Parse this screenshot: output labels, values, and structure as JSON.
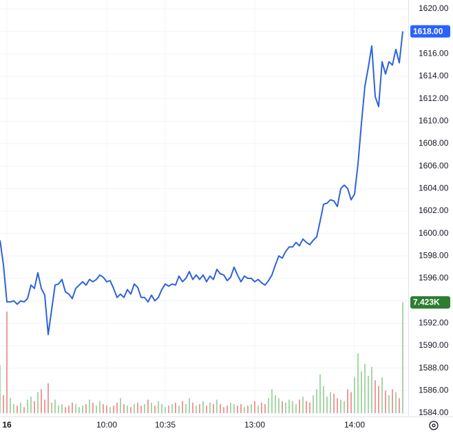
{
  "chart_data": {
    "type": "line",
    "x": [
      0,
      1,
      2,
      3,
      4,
      5,
      6,
      7,
      8,
      9,
      10,
      11,
      12,
      13,
      14,
      15,
      16,
      17,
      18,
      19,
      20,
      21,
      22,
      23,
      24,
      25,
      26,
      27,
      28,
      29,
      30,
      31,
      32,
      33,
      34,
      35,
      36,
      37,
      38,
      39,
      40,
      41,
      42,
      43,
      44,
      45,
      46,
      47,
      48,
      49,
      50,
      51,
      52,
      53,
      54,
      55,
      56,
      57,
      58,
      59,
      60,
      61,
      62,
      63,
      64,
      65,
      66,
      67,
      68,
      69,
      70,
      71,
      72,
      73,
      74,
      75,
      76,
      77,
      78,
      79,
      80,
      81,
      82,
      83,
      84,
      85,
      86,
      87,
      88,
      89,
      90,
      91,
      92,
      93,
      94,
      95,
      96,
      97,
      98,
      99,
      100,
      101,
      102,
      103,
      104,
      105,
      106,
      107,
      108,
      109,
      110,
      111,
      112,
      113,
      114,
      115,
      116,
      117
    ],
    "xlim": [
      0,
      117
    ],
    "xticks": [
      {
        "value": 2,
        "label": "16"
      },
      {
        "value": 31,
        "label": "10:00"
      },
      {
        "value": 48,
        "label": "10:35"
      },
      {
        "value": 74,
        "label": "13:00"
      },
      {
        "value": 103,
        "label": "14:00"
      }
    ],
    "ylim": [
      1584,
      1620
    ],
    "yticks": [
      {
        "value": 1584,
        "label": "1584.00"
      },
      {
        "value": 1586,
        "label": "1586.00"
      },
      {
        "value": 1588,
        "label": "1588.00"
      },
      {
        "value": 1590,
        "label": "1590.00"
      },
      {
        "value": 1592,
        "label": "1592.00"
      },
      {
        "value": 1594,
        "label": "1594.00"
      },
      {
        "value": 1596,
        "label": "1596.00"
      },
      {
        "value": 1598,
        "label": "1598.00"
      },
      {
        "value": 1600,
        "label": "1600.00"
      },
      {
        "value": 1602,
        "label": "1602.00"
      },
      {
        "value": 1604,
        "label": "1604.00"
      },
      {
        "value": 1606,
        "label": "1606.00"
      },
      {
        "value": 1608,
        "label": "1608.00"
      },
      {
        "value": 1610,
        "label": "1610.00"
      },
      {
        "value": 1612,
        "label": "1612.00"
      },
      {
        "value": 1614,
        "label": "1614.00"
      },
      {
        "value": 1616,
        "label": "1616.00"
      },
      {
        "value": 1618,
        "label": "1618.00"
      },
      {
        "value": 1620,
        "label": "1620.00"
      }
    ],
    "y2lim": [
      0,
      27.1
    ],
    "grid": true,
    "up_color": "#a5d6a7",
    "down_color": "#ef9a9a",
    "series": [
      {
        "color": "#2d62d9",
        "label_color": "#2962ff",
        "values": [
          1599.4,
          1597.2,
          1593.9,
          1593.9,
          1594.0,
          1593.7,
          1594.0,
          1593.9,
          1594.2,
          1595.4,
          1595.1,
          1596.5,
          1595.1,
          1594.5,
          1591.0,
          1593.2,
          1595.4,
          1595.5,
          1595.9,
          1594.8,
          1594.6,
          1594.2,
          1595.1,
          1595.4,
          1595.7,
          1595.4,
          1595.9,
          1595.7,
          1595.9,
          1596.3,
          1596.1,
          1595.7,
          1595.8,
          1595.1,
          1594.3,
          1594.6,
          1594.3,
          1595.0,
          1594.6,
          1595.5,
          1595.2,
          1594.3,
          1594.3,
          1593.9,
          1594.5,
          1594.0,
          1594.3,
          1595.0,
          1595.5,
          1595.3,
          1595.5,
          1595.4,
          1596.2,
          1595.7,
          1596.0,
          1596.6,
          1595.9,
          1596.3,
          1595.9,
          1596.3,
          1595.7,
          1596.2,
          1595.9,
          1596.8,
          1596.4,
          1596.3,
          1595.8,
          1596.1,
          1597.0,
          1596.3,
          1595.7,
          1596.2,
          1596.0,
          1596.0,
          1595.7,
          1595.9,
          1595.6,
          1595.4,
          1595.8,
          1596.3,
          1597.2,
          1598.0,
          1597.8,
          1598.4,
          1598.8,
          1598.8,
          1599.2,
          1598.9,
          1599.5,
          1599.2,
          1599.0,
          1599.4,
          1599.7,
          1601.1,
          1602.6,
          1602.7,
          1603.0,
          1602.9,
          1602.4,
          1604.0,
          1604.3,
          1604.0,
          1603.0,
          1603.5,
          1606.2,
          1609.8,
          1613.1,
          1614.8,
          1616.7,
          1612.2,
          1611.3,
          1615.3,
          1614.2,
          1615.3,
          1615.0,
          1616.4,
          1615.2,
          1618.0
        ],
        "value_labels": [
          null,
          null,
          null,
          null,
          null,
          null,
          null,
          null,
          null,
          null,
          null,
          null,
          null,
          null,
          null,
          null,
          null,
          null,
          null,
          null,
          null,
          null,
          null,
          null,
          null,
          null,
          null,
          null,
          null,
          null,
          null,
          null,
          null,
          null,
          null,
          null,
          null,
          null,
          null,
          null,
          null,
          null,
          null,
          null,
          null,
          null,
          null,
          null,
          null,
          null,
          null,
          null,
          null,
          null,
          null,
          null,
          null,
          null,
          null,
          null,
          null,
          null,
          null,
          null,
          null,
          null,
          null,
          null,
          null,
          null,
          null,
          null,
          null,
          null,
          null,
          null,
          null,
          null,
          null,
          null,
          null,
          null,
          null,
          null,
          null,
          null,
          null,
          null,
          null,
          null,
          null,
          null,
          null,
          null,
          null,
          null,
          null,
          null,
          null,
          null,
          null,
          null,
          null,
          null,
          null,
          null,
          null,
          null,
          null,
          null,
          null,
          null,
          null,
          null,
          null,
          null,
          null,
          "1618.00"
        ]
      },
      {
        "axis": "y2",
        "color": "#26a69a",
        "label_color": "#2e7d32",
        "values": [
          3.2,
          1.2,
          6.8,
          1.0,
          0.6,
          0.5,
          0.7,
          0.4,
          0.9,
          1.1,
          0.8,
          1.4,
          1.6,
          0.9,
          2.0,
          0.7,
          0.9,
          0.5,
          0.6,
          0.4,
          0.5,
          0.7,
          0.6,
          0.4,
          0.5,
          0.6,
          0.9,
          0.7,
          0.5,
          0.8,
          0.6,
          0.5,
          0.4,
          0.5,
          0.7,
          1.0,
          0.6,
          0.5,
          0.4,
          0.6,
          0.7,
          0.5,
          0.6,
          0.9,
          0.7,
          0.5,
          0.8,
          0.6,
          0.4,
          0.5,
          0.6,
          0.7,
          0.5,
          0.8,
          0.6,
          1.0,
          0.7,
          0.5,
          0.6,
          0.8,
          0.5,
          0.7,
          0.6,
          0.9,
          0.6,
          0.4,
          0.5,
          0.7,
          0.6,
          0.5,
          0.6,
          0.4,
          0.5,
          0.6,
          0.8,
          0.5,
          0.7,
          0.6,
          1.0,
          1.6,
          1.2,
          1.0,
          0.8,
          0.7,
          0.9,
          0.8,
          0.6,
          0.9,
          1.1,
          0.8,
          0.7,
          1.2,
          1.6,
          2.6,
          1.8,
          1.1,
          1.4,
          1.3,
          1.0,
          0.9,
          0.8,
          1.6,
          1.4,
          2.4,
          4.0,
          2.8,
          3.3,
          2.5,
          3.1,
          2.2,
          1.8,
          2.4,
          1.5,
          1.2,
          1.6,
          1.4,
          1.0,
          7.423
        ],
        "value_labels": [
          null,
          null,
          null,
          null,
          null,
          null,
          null,
          null,
          null,
          null,
          null,
          null,
          null,
          null,
          null,
          null,
          null,
          null,
          null,
          null,
          null,
          null,
          null,
          null,
          null,
          null,
          null,
          null,
          null,
          null,
          null,
          null,
          null,
          null,
          null,
          null,
          null,
          null,
          null,
          null,
          null,
          null,
          null,
          null,
          null,
          null,
          null,
          null,
          null,
          null,
          null,
          null,
          null,
          null,
          null,
          null,
          null,
          null,
          null,
          null,
          null,
          null,
          null,
          null,
          null,
          null,
          null,
          null,
          null,
          null,
          null,
          null,
          null,
          null,
          null,
          null,
          null,
          null,
          null,
          null,
          null,
          null,
          null,
          null,
          null,
          null,
          null,
          null,
          null,
          null,
          null,
          null,
          null,
          null,
          null,
          null,
          null,
          null,
          null,
          null,
          null,
          null,
          null,
          null,
          null,
          null,
          null,
          null,
          null,
          null,
          null,
          null,
          null,
          null,
          null,
          null,
          null,
          "7.423K"
        ]
      }
    ]
  }
}
